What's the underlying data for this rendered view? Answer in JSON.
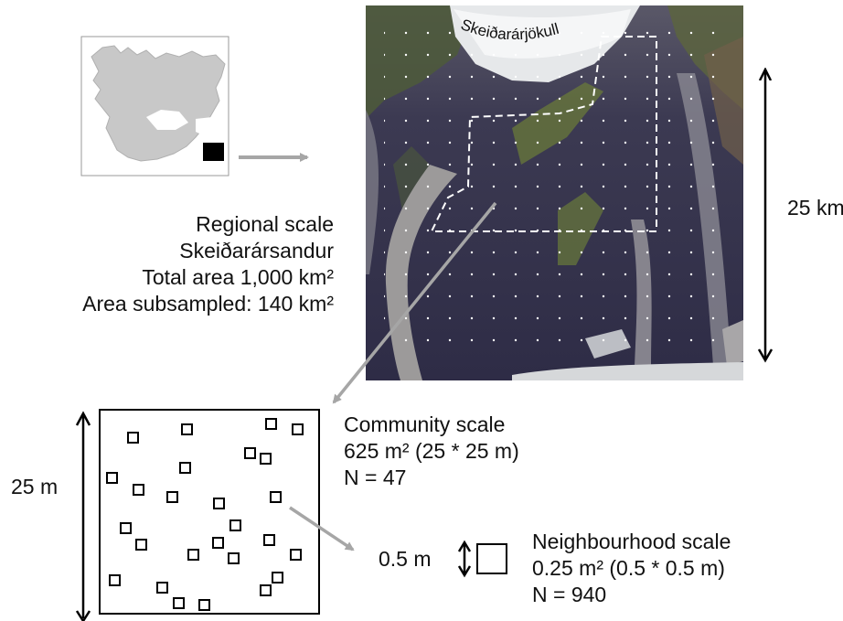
{
  "glacier_label": "Skeiðarárjökull",
  "regional": {
    "line1": "Regional scale",
    "line2": "Skeiðarársandur",
    "line3": "Total area 1,000 km²",
    "line4": "Area subsampled: 140 km²",
    "scale_label": "25 km"
  },
  "community": {
    "line1": "Community scale",
    "line2": "625 m² (25 * 25 m)",
    "line3": "N = 47",
    "scale_label": "25 m"
  },
  "neighbourhood": {
    "line1": "Neighbourhood scale",
    "line2": "0.25 m² (0.5 * 0.5 m)",
    "line3": "N = 940",
    "scale_label": "0.5 m"
  },
  "colors": {
    "arrow_gray": "#a6a6a6",
    "land_gray": "#c8c8c8",
    "sand_dark": "#3a3850",
    "river_gray": "#9c9a9a",
    "vegetation": "#6a7a3a"
  }
}
